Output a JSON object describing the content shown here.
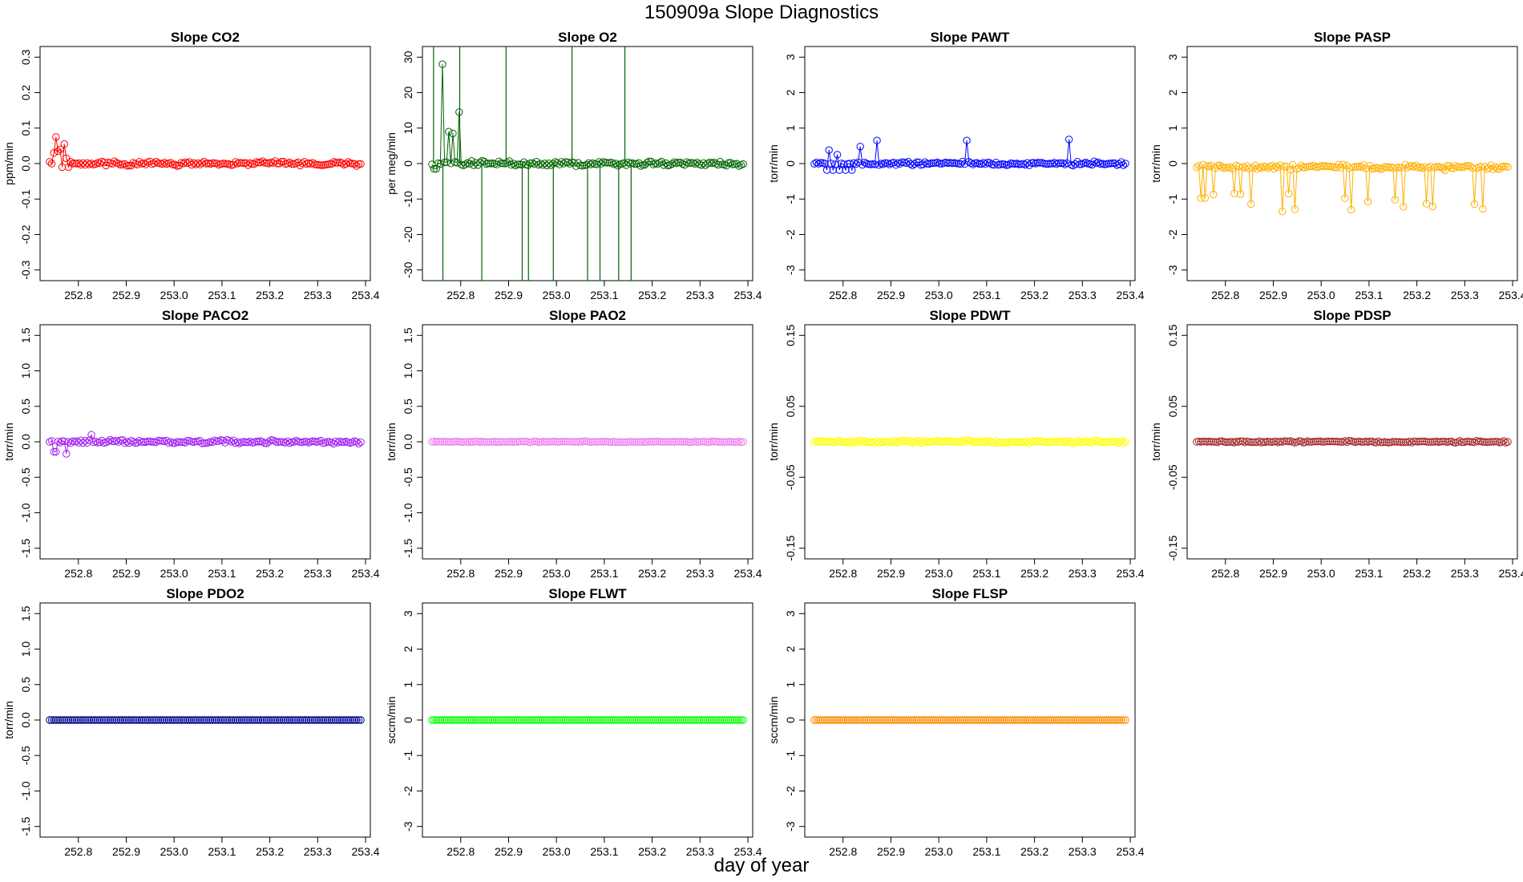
{
  "title": "150909a   Slope Diagnostics",
  "xlabel": "day of year",
  "chart_data": [
    {
      "type": "scatter",
      "title": "Slope CO2",
      "ylabel": "ppm/min",
      "xlim": [
        252.72,
        253.41
      ],
      "ylim": [
        -0.33,
        0.33
      ],
      "xticks": [
        "252.8",
        "252.9",
        "253.0",
        "253.1",
        "253.2",
        "253.3",
        "253.4"
      ],
      "yticks": [
        "-0.3",
        "-0.2",
        "-0.1",
        "0.0",
        "0.1",
        "0.2",
        "0.3"
      ],
      "grid": false,
      "color": "#ff0000",
      "lines": true,
      "pattern": "co2"
    },
    {
      "type": "scatter",
      "title": "Slope O2",
      "ylabel": "per meg/min",
      "xlim": [
        252.72,
        253.41
      ],
      "ylim": [
        -33,
        33
      ],
      "xticks": [
        "252.8",
        "252.9",
        "253.0",
        "253.1",
        "253.2",
        "253.3",
        "253.4"
      ],
      "yticks": [
        "-30",
        "-20",
        "-10",
        "0",
        "10",
        "20",
        "30"
      ],
      "grid": false,
      "color": "#006400",
      "lines": true,
      "pattern": "o2"
    },
    {
      "type": "scatter",
      "title": "Slope PAWT",
      "ylabel": "torr/min",
      "xlim": [
        252.72,
        253.41
      ],
      "ylim": [
        -3.3,
        3.3
      ],
      "xticks": [
        "252.8",
        "252.9",
        "253.0",
        "253.1",
        "253.2",
        "253.3",
        "253.4"
      ],
      "yticks": [
        "-3",
        "-2",
        "-1",
        "0",
        "1",
        "2",
        "3"
      ],
      "grid": false,
      "color": "#0000ff",
      "lines": true,
      "pattern": "pawt"
    },
    {
      "type": "scatter",
      "title": "Slope PASP",
      "ylabel": "torr/min",
      "xlim": [
        252.72,
        253.41
      ],
      "ylim": [
        -3.3,
        3.3
      ],
      "xticks": [
        "252.8",
        "252.9",
        "253.0",
        "253.1",
        "253.2",
        "253.3",
        "253.4"
      ],
      "yticks": [
        "-3",
        "-2",
        "-1",
        "0",
        "1",
        "2",
        "3"
      ],
      "grid": false,
      "color": "#ffb000",
      "lines": true,
      "pattern": "pasp"
    },
    {
      "type": "scatter",
      "title": "Slope PACO2",
      "ylabel": "torr/min",
      "xlim": [
        252.72,
        253.41
      ],
      "ylim": [
        -1.65,
        1.65
      ],
      "xticks": [
        "252.8",
        "252.9",
        "253.0",
        "253.1",
        "253.2",
        "253.3",
        "253.4"
      ],
      "yticks": [
        "-1.5",
        "-1.0",
        "-0.5",
        "0.0",
        "0.5",
        "1.0",
        "1.5"
      ],
      "grid": false,
      "color": "#a020f0",
      "lines": true,
      "pattern": "paco2"
    },
    {
      "type": "scatter",
      "title": "Slope PAO2",
      "ylabel": "torr/min",
      "xlim": [
        252.72,
        253.41
      ],
      "ylim": [
        -1.65,
        1.65
      ],
      "xticks": [
        "252.8",
        "252.9",
        "253.0",
        "253.1",
        "253.2",
        "253.3",
        "253.4"
      ],
      "yticks": [
        "-1.5",
        "-1.0",
        "-0.5",
        "0.0",
        "0.5",
        "1.0",
        "1.5"
      ],
      "grid": false,
      "color": "#ee82ee",
      "lines": true,
      "pattern": "flat"
    },
    {
      "type": "scatter",
      "title": "Slope PDWT",
      "ylabel": "torr/min",
      "xlim": [
        252.72,
        253.41
      ],
      "ylim": [
        -0.165,
        0.165
      ],
      "xticks": [
        "252.8",
        "252.9",
        "253.0",
        "253.1",
        "253.2",
        "253.3",
        "253.4"
      ],
      "yticks": [
        "-0.15",
        "-0.05",
        "0.05",
        "0.15"
      ],
      "ytickvals": [
        -0.15,
        -0.05,
        0.05,
        0.15
      ],
      "grid": false,
      "color": "#ffff00",
      "lines": true,
      "pattern": "pdwt"
    },
    {
      "type": "scatter",
      "title": "Slope PDSP",
      "ylabel": "torr/min",
      "xlim": [
        252.72,
        253.41
      ],
      "ylim": [
        -0.165,
        0.165
      ],
      "xticks": [
        "252.8",
        "252.9",
        "253.0",
        "253.1",
        "253.2",
        "253.3",
        "253.4"
      ],
      "yticks": [
        "-0.15",
        "-0.05",
        "0.05",
        "0.15"
      ],
      "ytickvals": [
        -0.15,
        -0.05,
        0.05,
        0.15
      ],
      "grid": false,
      "color": "#a52a2a",
      "lines": true,
      "pattern": "pdsp"
    },
    {
      "type": "scatter",
      "title": "Slope PDO2",
      "ylabel": "torr/min",
      "xlim": [
        252.72,
        253.41
      ],
      "ylim": [
        -1.65,
        1.65
      ],
      "xticks": [
        "252.8",
        "252.9",
        "253.0",
        "253.1",
        "253.2",
        "253.3",
        "253.4"
      ],
      "yticks": [
        "-1.5",
        "-1.0",
        "-0.5",
        "0.0",
        "0.5",
        "1.0",
        "1.5"
      ],
      "grid": false,
      "color": "#00008b",
      "lines": true,
      "pattern": "zero"
    },
    {
      "type": "scatter",
      "title": "Slope FLWT",
      "ylabel": "sccm/min",
      "xlim": [
        252.72,
        253.41
      ],
      "ylim": [
        -3.3,
        3.3
      ],
      "xticks": [
        "252.8",
        "252.9",
        "253.0",
        "253.1",
        "253.2",
        "253.3",
        "253.4"
      ],
      "yticks": [
        "-3",
        "-2",
        "-1",
        "0",
        "1",
        "2",
        "3"
      ],
      "grid": false,
      "color": "#00ff00",
      "lines": true,
      "pattern": "zero"
    },
    {
      "type": "scatter",
      "title": "Slope FLSP",
      "ylabel": "sccm/min",
      "xlim": [
        252.72,
        253.41
      ],
      "ylim": [
        -3.3,
        3.3
      ],
      "xticks": [
        "252.8",
        "252.9",
        "253.0",
        "253.1",
        "253.2",
        "253.3",
        "253.4"
      ],
      "yticks": [
        "-3",
        "-2",
        "-1",
        "0",
        "1",
        "2",
        "3"
      ],
      "grid": false,
      "color": "#ff8c00",
      "lines": true,
      "pattern": "zero"
    }
  ]
}
